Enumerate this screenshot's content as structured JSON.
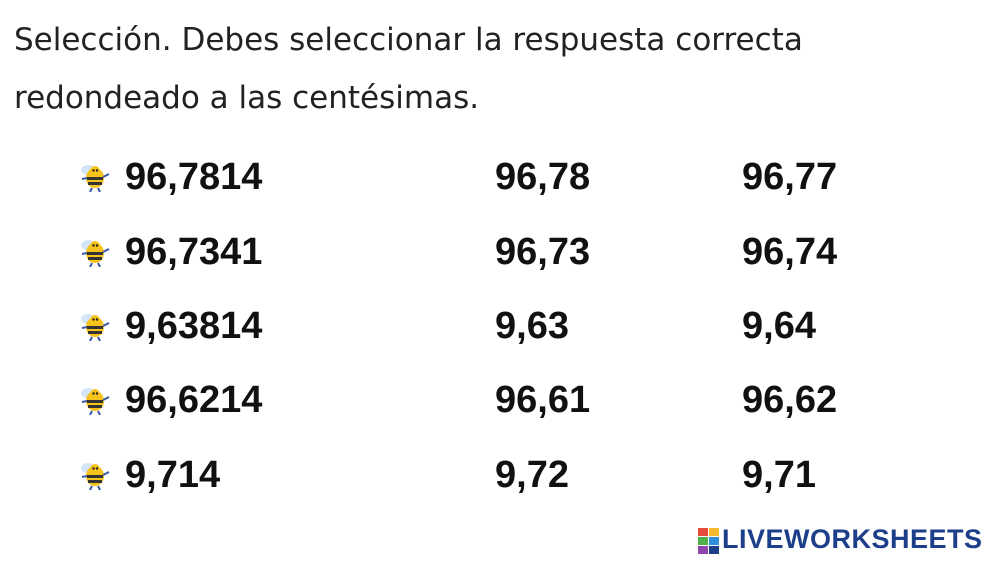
{
  "header": {
    "lines": [
      "Selección. Debes seleccionar la respuesta correcta",
      "redondeado a las centésimas."
    ]
  },
  "rows": [
    {
      "number": "96,7814",
      "options": [
        "96,78",
        "96,77"
      ]
    },
    {
      "number": "96,7341",
      "options": [
        "96,73",
        "96,74"
      ]
    },
    {
      "number": "9,63814",
      "options": [
        "9,63",
        "9,64"
      ]
    },
    {
      "number": "96,6214",
      "options": [
        "96,61",
        "96,62"
      ]
    },
    {
      "number": "9,714",
      "options": [
        "9,72",
        "9,71"
      ]
    }
  ],
  "footer": {
    "brand": "LIVEWORKSHEETS"
  }
}
